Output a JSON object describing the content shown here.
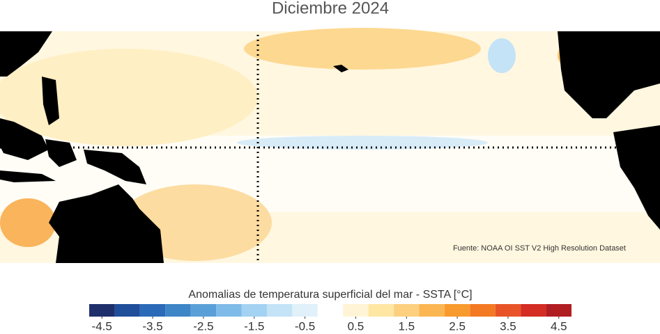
{
  "title": "Diciembre 2024",
  "source": "Fuente: NOAA OI SST V2 High Resolution Dataset",
  "colorbar": {
    "label": "Anomalias de temperatura superficial del mar - SSTA  [°C]",
    "bins": [
      -4.75,
      -4.25,
      -3.75,
      -3.25,
      -2.75,
      -2.25,
      -1.75,
      -1.25,
      -0.75,
      -0.25,
      0.25,
      0.75,
      1.25,
      1.75,
      2.25,
      2.75,
      3.25,
      3.75,
      4.25,
      4.75
    ],
    "colors": [
      "#1f2f6b",
      "#1f4e9a",
      "#2a6ab8",
      "#3d85c6",
      "#5aa0d8",
      "#7fbbe8",
      "#a3d2f2",
      "#c4e3f6",
      "#e0f1fa",
      "#ffffff",
      "#fff5d6",
      "#ffe6a3",
      "#fdd080",
      "#fbb652",
      "#f89a2e",
      "#f37a22",
      "#e85428",
      "#d42d23",
      "#b01e22"
    ],
    "ticks": [
      -4.5,
      -3.5,
      -2.5,
      -1.5,
      -0.5,
      0.5,
      1.5,
      2.5,
      3.5,
      4.5
    ]
  }
}
